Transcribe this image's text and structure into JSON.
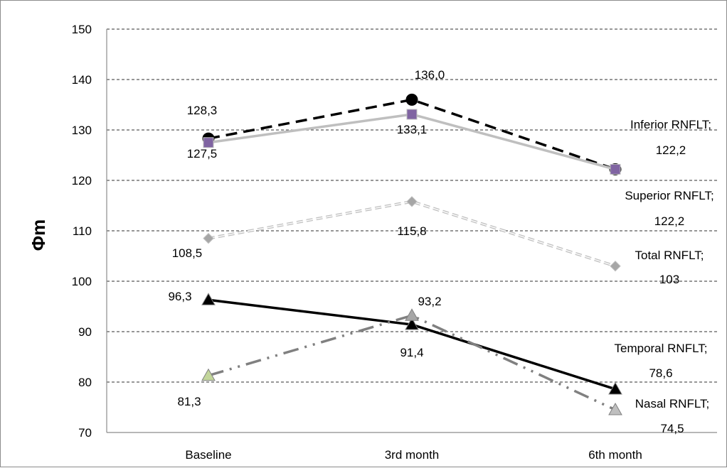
{
  "chart_data": {
    "type": "line",
    "ylabel": "Φm",
    "ylim": [
      70,
      150
    ],
    "yticks": [
      70,
      80,
      90,
      100,
      110,
      120,
      130,
      140,
      150
    ],
    "categories": [
      "Baseline",
      "3rd month",
      "6th month"
    ],
    "grid": "horizontal dashed",
    "legend": "none",
    "series": [
      {
        "name": "Inferior RNFLT",
        "values": [
          128.3,
          136.0,
          122.2
        ],
        "labels": [
          "128,3",
          "136,0",
          "Inferior RNFLT;|122,2"
        ],
        "color": "#000000",
        "marker": "circle",
        "line": "dashed"
      },
      {
        "name": "Superior RNFLT",
        "values": [
          127.5,
          133.1,
          122.2
        ],
        "labels": [
          "127,5",
          "133,1",
          "Superior RNFLT;|122,2"
        ],
        "color": "#bfbfbf",
        "marker": "square",
        "marker_color": "#8064a2",
        "line": "solid"
      },
      {
        "name": "Total RNFLT",
        "values": [
          108.5,
          115.8,
          103
        ],
        "labels": [
          "108,5",
          "115,8",
          "Total RNFLT;|103"
        ],
        "color": "#bfbfbf",
        "marker": "diamond",
        "marker_color": "#a6a6a6",
        "line": "double-dashed"
      },
      {
        "name": "Temporal RNFLT",
        "values": [
          96.3,
          91.4,
          78.6
        ],
        "labels": [
          "96,3",
          "91,4",
          "Temporal RNFLT;|78,6"
        ],
        "color": "#000000",
        "marker": "triangle",
        "line": "solid"
      },
      {
        "name": "Nasal RNFLT",
        "values": [
          81.3,
          93.2,
          74.5
        ],
        "labels": [
          "81,3",
          "93,2",
          "Nasal RNFLT;|74,5"
        ],
        "color": "#808080",
        "marker": "triangle",
        "marker_colors": [
          "#c3d69b",
          "#a6a6a6",
          "#bfbfbf"
        ],
        "line": "dash-dot-dot"
      }
    ]
  }
}
